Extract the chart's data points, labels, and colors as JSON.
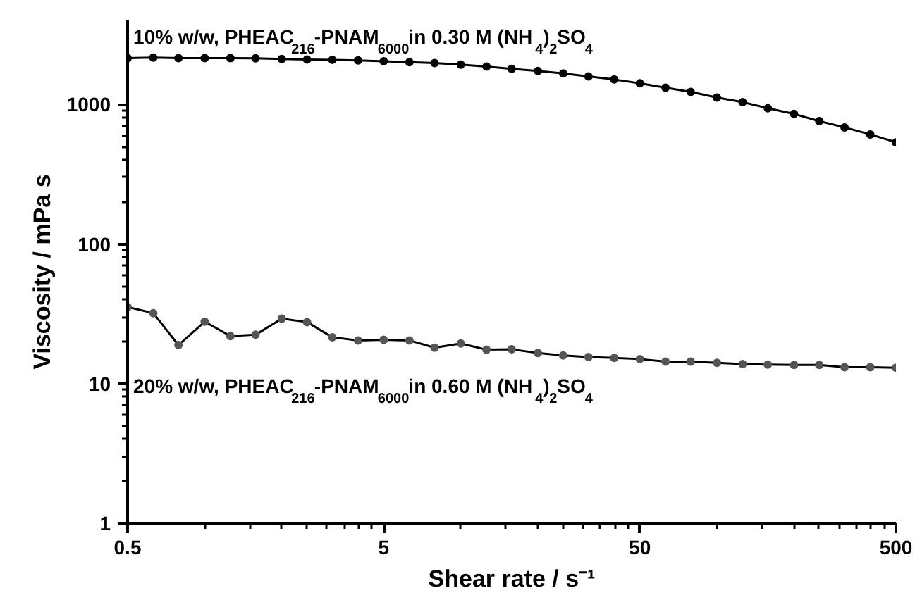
{
  "chart_data": {
    "type": "line",
    "xlabel": "Shear rate / s⁻¹",
    "ylabel": "Viscosity / mPa s",
    "log": "xy",
    "grid": false,
    "marker": "circle",
    "line_style": "solid",
    "x": [
      0.5,
      0.63,
      0.79,
      1,
      1.26,
      1.58,
      2,
      2.51,
      3.15,
      3.97,
      5,
      6.3,
      7.9,
      10,
      12.6,
      15.8,
      20,
      25.1,
      31.5,
      39.7,
      50,
      63,
      79,
      100,
      126,
      158,
      200,
      251,
      315,
      397,
      500
    ],
    "xlim": [
      0.5,
      500
    ],
    "xticks": [
      0.5,
      5,
      50,
      500
    ],
    "ylim": [
      1,
      4000
    ],
    "yticks": [
      1,
      10,
      100,
      1000
    ],
    "series": [
      {
        "name": "10% w/w, PHEAC$_{216}$-PNAM$_{6000}$ in 0.30 M (NH$_{4}$)$_{2}$SO$_{4}$",
        "color": "#000000",
        "values": [
          2150,
          2170,
          2150,
          2150,
          2150,
          2140,
          2120,
          2100,
          2090,
          2070,
          2040,
          2010,
          1980,
          1930,
          1870,
          1800,
          1740,
          1670,
          1590,
          1510,
          1420,
          1320,
          1230,
          1120,
          1040,
          940,
          855,
          760,
          685,
          610,
          535
        ]
      },
      {
        "name": "20% w/w, PHEAC$_{216}$-PNAM$_{6000}$ in 0.60 M (NH$_{4}$)$_{2}$SO$_{4}$",
        "color": "#555555",
        "values": [
          35.4,
          32.0,
          18.9,
          27.8,
          21.9,
          22.4,
          29.2,
          27.6,
          21.5,
          20.4,
          20.6,
          20.4,
          18.1,
          19.4,
          17.5,
          17.6,
          16.6,
          15.9,
          15.5,
          15.3,
          15.0,
          14.4,
          14.4,
          14.1,
          13.8,
          13.7,
          13.6,
          13.6,
          13.1,
          13.1,
          13.0
        ]
      }
    ]
  }
}
